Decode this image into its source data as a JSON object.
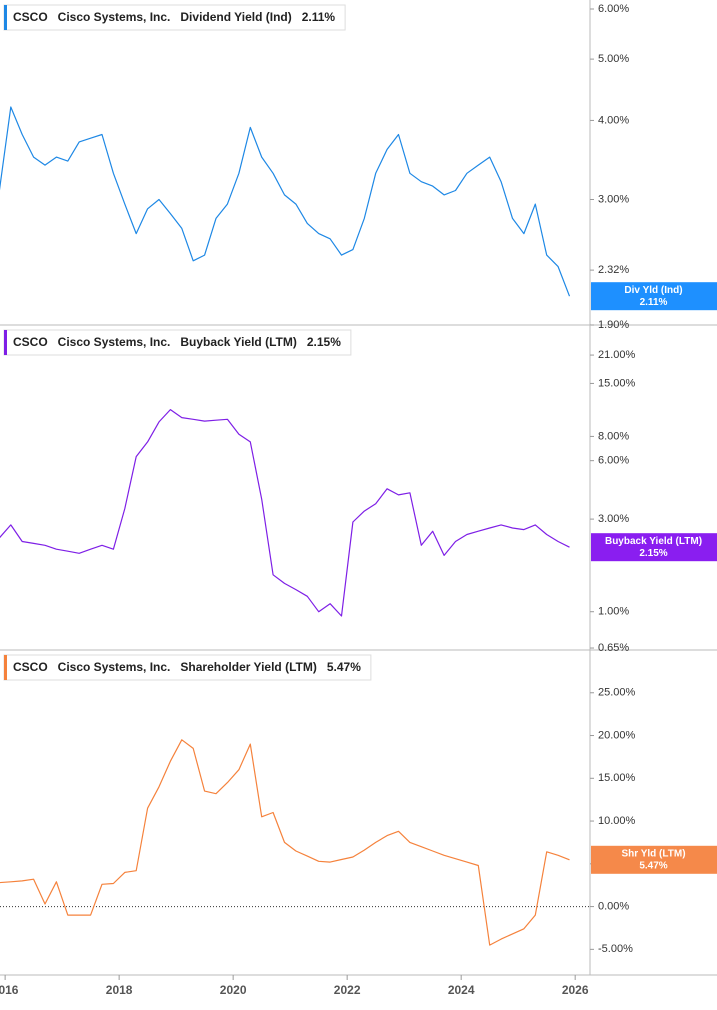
{
  "chart_data": [
    {
      "type": "line",
      "ticker": "CSCO",
      "company": "Cisco Systems, Inc.",
      "title": "Dividend Yield (Ind)",
      "flag_label": "Div Yld (Ind)",
      "last_value_label": "2.11%",
      "color": "#1e88e5",
      "flag_color": "#1e90ff",
      "log": true,
      "xlim": [
        2015.91,
        2026.26
      ],
      "ylim": [
        1.9,
        6.2
      ],
      "yticks": [
        {
          "value": 6,
          "label": "6.00%"
        },
        {
          "value": 5,
          "label": "5.00%"
        },
        {
          "value": 4,
          "label": "4.00%"
        },
        {
          "value": 3,
          "label": "3.00%"
        },
        {
          "value": 2.32,
          "label": "2.32%"
        },
        {
          "value": 1.9,
          "label": "1.90%"
        }
      ],
      "x": [
        2015.9,
        2016.1,
        2016.3,
        2016.5,
        2016.7,
        2016.9,
        2017.1,
        2017.3,
        2017.5,
        2017.7,
        2017.9,
        2018.1,
        2018.3,
        2018.5,
        2018.7,
        2018.9,
        2019.1,
        2019.3,
        2019.5,
        2019.7,
        2019.9,
        2020.1,
        2020.3,
        2020.5,
        2020.7,
        2020.9,
        2021.1,
        2021.3,
        2021.5,
        2021.7,
        2021.9,
        2022.1,
        2022.3,
        2022.5,
        2022.7,
        2022.9,
        2023.1,
        2023.3,
        2023.5,
        2023.7,
        2023.9,
        2024.1,
        2024.3,
        2024.5,
        2024.7,
        2024.9,
        2025.1,
        2025.3,
        2025.5,
        2025.7,
        2025.9
      ],
      "values": [
        3.1,
        4.2,
        3.8,
        3.5,
        3.4,
        3.5,
        3.45,
        3.7,
        3.75,
        3.8,
        3.3,
        2.95,
        2.65,
        2.9,
        3.0,
        2.85,
        2.7,
        2.4,
        2.45,
        2.8,
        2.95,
        3.3,
        3.9,
        3.5,
        3.3,
        3.05,
        2.95,
        2.75,
        2.65,
        2.6,
        2.45,
        2.5,
        2.8,
        3.3,
        3.6,
        3.8,
        3.3,
        3.2,
        3.15,
        3.05,
        3.1,
        3.3,
        3.4,
        3.5,
        3.2,
        2.8,
        2.65,
        2.95,
        2.45,
        2.35,
        2.11
      ]
    },
    {
      "type": "line",
      "ticker": "CSCO",
      "company": "Cisco Systems, Inc.",
      "title": "Buyback Yield (LTM)",
      "flag_label": "Buyback Yield (LTM)",
      "last_value_label": "2.15%",
      "color": "#7e1fe6",
      "flag_color": "#8a1ef0",
      "log": true,
      "xlim": [
        2015.91,
        2026.26
      ],
      "ylim": [
        0.635,
        30
      ],
      "yticks": [
        {
          "value": 21,
          "label": "21.00%"
        },
        {
          "value": 15,
          "label": "15.00%"
        },
        {
          "value": 8,
          "label": "8.00%"
        },
        {
          "value": 6,
          "label": "6.00%"
        },
        {
          "value": 3,
          "label": "3.00%"
        },
        {
          "value": 1,
          "label": "1.00%"
        },
        {
          "value": 0.65,
          "label": "0.65%"
        }
      ],
      "x": [
        2015.9,
        2016.1,
        2016.3,
        2016.5,
        2016.7,
        2016.9,
        2017.1,
        2017.3,
        2017.5,
        2017.7,
        2017.9,
        2018.1,
        2018.3,
        2018.5,
        2018.7,
        2018.9,
        2019.1,
        2019.3,
        2019.5,
        2019.7,
        2019.9,
        2020.1,
        2020.3,
        2020.5,
        2020.7,
        2020.9,
        2021.1,
        2021.3,
        2021.5,
        2021.7,
        2021.9,
        2022.1,
        2022.3,
        2022.5,
        2022.7,
        2022.9,
        2023.1,
        2023.3,
        2023.5,
        2023.7,
        2023.9,
        2024.1,
        2024.3,
        2024.5,
        2024.7,
        2024.9,
        2025.1,
        2025.3,
        2025.5,
        2025.7,
        2025.9
      ],
      "values": [
        2.4,
        2.8,
        2.3,
        2.25,
        2.2,
        2.1,
        2.05,
        2.0,
        2.1,
        2.2,
        2.1,
        3.4,
        6.3,
        7.5,
        9.5,
        11.0,
        10.0,
        9.8,
        9.6,
        9.7,
        9.8,
        8.2,
        7.5,
        3.8,
        1.55,
        1.4,
        1.3,
        1.2,
        1.0,
        1.1,
        0.95,
        2.9,
        3.3,
        3.6,
        4.3,
        4.0,
        4.1,
        2.2,
        2.6,
        1.95,
        2.3,
        2.5,
        2.6,
        2.7,
        2.8,
        2.7,
        2.65,
        2.8,
        2.5,
        2.3,
        2.15
      ]
    },
    {
      "type": "line",
      "ticker": "CSCO",
      "company": "Cisco Systems, Inc.",
      "title": "Shareholder Yield (LTM)",
      "flag_label": "Shr Yld (LTM)",
      "last_value_label": "5.47%",
      "color": "#f5823c",
      "flag_color": "#f5894a",
      "log": false,
      "zero_line": true,
      "xlim": [
        2015.91,
        2026.26
      ],
      "ylim": [
        -8,
        30
      ],
      "yticks": [
        {
          "value": 25,
          "label": "25.00%"
        },
        {
          "value": 20,
          "label": "20.00%"
        },
        {
          "value": 15,
          "label": "15.00%"
        },
        {
          "value": 10,
          "label": "10.00%"
        },
        {
          "value": 5,
          "label": "5.00%"
        },
        {
          "value": 0,
          "label": "0.00%"
        },
        {
          "value": -5,
          "label": "-5.00%"
        }
      ],
      "xticks": [
        2016,
        2018,
        2020,
        2022,
        2024,
        2026
      ],
      "x": [
        2015.9,
        2016.1,
        2016.3,
        2016.5,
        2016.7,
        2016.9,
        2017.1,
        2017.3,
        2017.5,
        2017.7,
        2017.9,
        2018.1,
        2018.3,
        2018.5,
        2018.7,
        2018.9,
        2019.1,
        2019.3,
        2019.5,
        2019.7,
        2019.9,
        2020.1,
        2020.3,
        2020.5,
        2020.7,
        2020.9,
        2021.1,
        2021.3,
        2021.5,
        2021.7,
        2021.9,
        2022.1,
        2022.3,
        2022.5,
        2022.7,
        2022.9,
        2023.1,
        2023.3,
        2023.5,
        2023.7,
        2023.9,
        2024.1,
        2024.3,
        2024.5,
        2024.7,
        2024.9,
        2025.1,
        2025.3,
        2025.5,
        2025.7,
        2025.9
      ],
      "values": [
        2.8,
        2.9,
        3.0,
        3.2,
        0.3,
        2.9,
        -1.0,
        -1.0,
        -1.0,
        2.6,
        2.7,
        4.0,
        4.2,
        11.5,
        14.0,
        17.0,
        19.5,
        18.5,
        13.5,
        13.2,
        14.5,
        16.0,
        19.0,
        10.5,
        11.0,
        7.5,
        6.5,
        5.9,
        5.3,
        5.2,
        5.5,
        5.8,
        6.6,
        7.5,
        8.3,
        8.8,
        7.5,
        7.0,
        6.5,
        6.0,
        5.6,
        5.2,
        4.8,
        -4.5,
        -3.8,
        -3.2,
        -2.6,
        -1.0,
        6.4,
        6.0,
        5.47
      ]
    }
  ]
}
